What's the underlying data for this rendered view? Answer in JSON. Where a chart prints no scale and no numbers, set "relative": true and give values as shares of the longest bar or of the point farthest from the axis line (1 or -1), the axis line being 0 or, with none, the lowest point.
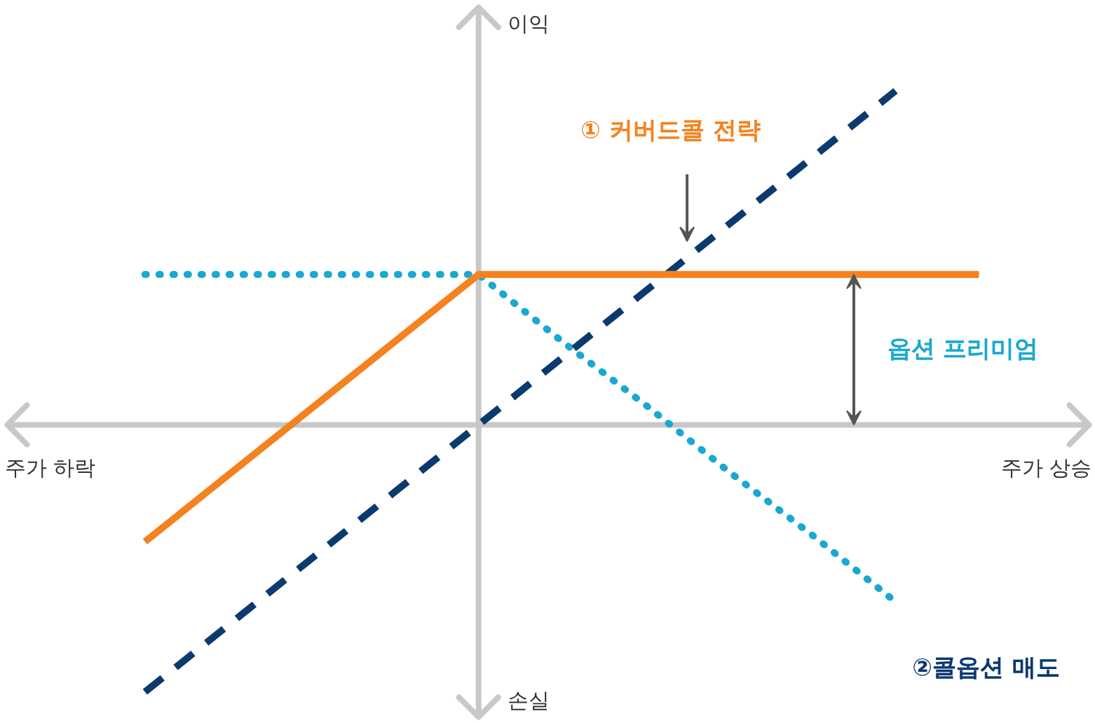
{
  "chart_data": {
    "type": "line",
    "relative": true,
    "grid": false,
    "categories": [
      null,
      null,
      null,
      null,
      null,
      null,
      null,
      null,
      null,
      null,
      null
    ],
    "series": [
      {
        "name": "②콜옵션 매도",
        "color": "#1ba8cf",
        "values": [
          0.45,
          0.45,
          0.45,
          0.45,
          0.45,
          0.25,
          0.06,
          -0.14,
          -0.33,
          -0.53,
          null
        ],
        "line_style": "dotted"
      },
      {
        "color": "#0b3a6e",
        "values": [
          -0.8,
          -0.6,
          -0.4,
          -0.2,
          0,
          0.2,
          0.4,
          0.6,
          0.8,
          1.0,
          null
        ],
        "line_style": "dashed"
      },
      {
        "name": "① 커버드콜 전략",
        "color": "#f58220",
        "values": [
          -0.35,
          -0.15,
          0.05,
          0.25,
          0.45,
          0.45,
          0.45,
          0.45,
          0.45,
          0.45,
          0.45
        ],
        "line_style": "solid"
      }
    ],
    "annotations": [
      "이익",
      "손실",
      "주가 하락",
      "주가 상승",
      "옵션 프리미엄"
    ]
  }
}
